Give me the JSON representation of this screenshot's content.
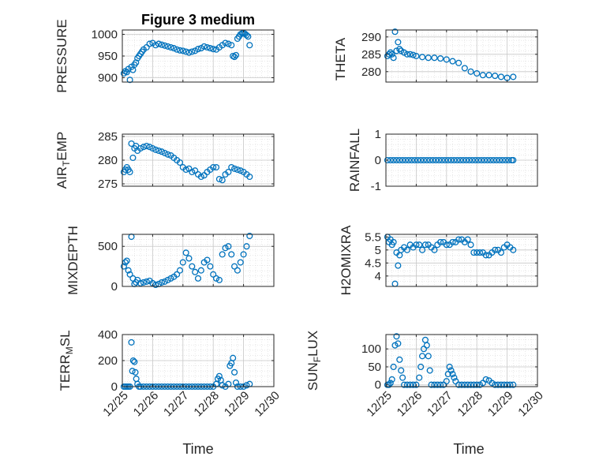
{
  "figure": {
    "xlabel": "Time"
  },
  "chart_data": [
    {
      "type": "scatter",
      "title": "Figure 3 medium",
      "ylabel": "PRESSURE",
      "ylim": [
        890,
        1010
      ],
      "yticks": [
        900,
        950,
        1000
      ],
      "ytick_labels": [
        "900",
        "950",
        "1000"
      ],
      "xlim": [
        0,
        5
      ],
      "xticks": [
        0,
        1,
        2,
        3,
        4,
        5
      ],
      "show_xtick_labels": false,
      "x": [
        0.05,
        0.1,
        0.15,
        0.2,
        0.25,
        0.3,
        0.35,
        0.4,
        0.45,
        0.5,
        0.55,
        0.6,
        0.65,
        0.7,
        0.8,
        0.9,
        1.0,
        1.1,
        1.2,
        1.3,
        1.4,
        1.5,
        1.6,
        1.7,
        1.8,
        1.9,
        2.0,
        2.1,
        2.2,
        2.3,
        2.4,
        2.5,
        2.6,
        2.7,
        2.8,
        2.9,
        3.0,
        3.1,
        3.2,
        3.3,
        3.4,
        3.5,
        3.6,
        3.65,
        3.7,
        3.75,
        3.8,
        3.85,
        3.9,
        3.95,
        4.0,
        4.05,
        4.1,
        4.15,
        4.2
      ],
      "y": [
        910,
        915,
        913,
        920,
        895,
        925,
        918,
        930,
        935,
        945,
        950,
        955,
        960,
        965,
        970,
        978,
        980,
        975,
        978,
        976,
        974,
        972,
        970,
        968,
        965,
        963,
        962,
        960,
        958,
        960,
        962,
        966,
        968,
        972,
        970,
        968,
        966,
        965,
        970,
        975,
        980,
        978,
        975,
        950,
        948,
        952,
        990,
        995,
        1000,
        1002,
        1003,
        1001,
        998,
        995,
        975
      ]
    },
    {
      "type": "scatter",
      "ylabel": "THETA",
      "ylim": [
        277,
        292
      ],
      "yticks": [
        280,
        285,
        290
      ],
      "ytick_labels": [
        "280",
        "285",
        "290"
      ],
      "xlim": [
        0,
        5
      ],
      "xticks": [
        0,
        1,
        2,
        3,
        4,
        5
      ],
      "show_xtick_labels": false,
      "x": [
        0.05,
        0.1,
        0.15,
        0.2,
        0.25,
        0.3,
        0.35,
        0.4,
        0.45,
        0.5,
        0.6,
        0.7,
        0.8,
        0.9,
        1.0,
        1.2,
        1.4,
        1.6,
        1.8,
        2.0,
        2.2,
        2.4,
        2.6,
        2.8,
        3.0,
        3.2,
        3.4,
        3.6,
        3.8,
        4.0,
        4.2
      ],
      "y": [
        284.5,
        285,
        285.5,
        285,
        284,
        291.5,
        286,
        288.5,
        286.5,
        286,
        285.5,
        285,
        285,
        284.8,
        284.5,
        284.2,
        284,
        284,
        283.8,
        283.5,
        283,
        282.5,
        281,
        280,
        279.5,
        279,
        279,
        278.8,
        278.5,
        278.2,
        278.5
      ]
    },
    {
      "type": "scatter",
      "ylabel": "AIR_TEMP",
      "ylim": [
        274.5,
        285.5
      ],
      "yticks": [
        275,
        280,
        285
      ],
      "ytick_labels": [
        "275",
        "280",
        "285"
      ],
      "xlim": [
        0,
        5
      ],
      "xticks": [
        0,
        1,
        2,
        3,
        4,
        5
      ],
      "show_xtick_labels": false,
      "x": [
        0.05,
        0.1,
        0.15,
        0.2,
        0.25,
        0.3,
        0.35,
        0.4,
        0.45,
        0.5,
        0.6,
        0.7,
        0.8,
        0.9,
        1.0,
        1.1,
        1.2,
        1.3,
        1.4,
        1.5,
        1.6,
        1.7,
        1.8,
        1.9,
        2.0,
        2.1,
        2.2,
        2.3,
        2.4,
        2.5,
        2.6,
        2.7,
        2.8,
        2.9,
        3.0,
        3.1,
        3.2,
        3.3,
        3.4,
        3.5,
        3.6,
        3.7,
        3.8,
        3.9,
        4.0,
        4.1,
        4.2
      ],
      "y": [
        277.5,
        278,
        278.5,
        278,
        277.5,
        283.5,
        280.5,
        282.5,
        283,
        282,
        282.5,
        282.8,
        283,
        282.8,
        282.5,
        282.2,
        282,
        281.8,
        281.5,
        281.2,
        281,
        280.5,
        280,
        279.5,
        278.5,
        278,
        278.2,
        277.5,
        277.8,
        277,
        276.5,
        276.8,
        277.5,
        278,
        278.5,
        278.5,
        276,
        275.8,
        277,
        277.5,
        278.5,
        278.2,
        278,
        277.8,
        277.5,
        277,
        276.5
      ]
    },
    {
      "type": "scatter",
      "ylabel": "RAINFALL",
      "ylim": [
        -1,
        1
      ],
      "yticks": [
        -1,
        0,
        1
      ],
      "ytick_labels": [
        "-1",
        "0",
        "1"
      ],
      "xlim": [
        0,
        5
      ],
      "xticks": [
        0,
        1,
        2,
        3,
        4,
        5
      ],
      "show_xtick_labels": false,
      "x": [
        0.05,
        0.15,
        0.25,
        0.35,
        0.45,
        0.55,
        0.65,
        0.75,
        0.85,
        0.95,
        1.05,
        1.15,
        1.25,
        1.35,
        1.45,
        1.55,
        1.65,
        1.75,
        1.85,
        1.95,
        2.05,
        2.15,
        2.25,
        2.35,
        2.45,
        2.55,
        2.65,
        2.75,
        2.85,
        2.95,
        3.05,
        3.15,
        3.25,
        3.35,
        3.45,
        3.55,
        3.65,
        3.75,
        3.85,
        3.95,
        4.05,
        4.15,
        4.2
      ],
      "y": [
        0,
        0,
        0,
        0,
        0,
        0,
        0,
        0,
        0,
        0,
        0,
        0,
        0,
        0,
        0,
        0,
        0,
        0,
        0,
        0,
        0,
        0,
        0,
        0,
        0,
        0,
        0,
        0,
        0,
        0,
        0,
        0,
        0,
        0,
        0,
        0,
        0,
        0,
        0,
        0,
        0,
        0,
        0
      ]
    },
    {
      "type": "scatter",
      "ylabel": "MIXDEPTH",
      "ylim": [
        0,
        650
      ],
      "yticks": [
        0,
        500
      ],
      "ytick_labels": [
        "0",
        "500"
      ],
      "xlim": [
        0,
        5
      ],
      "xticks": [
        0,
        1,
        2,
        3,
        4,
        5
      ],
      "show_xtick_labels": false,
      "x": [
        0.05,
        0.1,
        0.15,
        0.2,
        0.25,
        0.3,
        0.35,
        0.4,
        0.45,
        0.5,
        0.6,
        0.7,
        0.8,
        0.9,
        1.0,
        1.1,
        1.2,
        1.3,
        1.4,
        1.5,
        1.6,
        1.7,
        1.8,
        1.9,
        2.0,
        2.1,
        2.2,
        2.3,
        2.4,
        2.5,
        2.6,
        2.7,
        2.8,
        2.9,
        3.0,
        3.1,
        3.2,
        3.3,
        3.4,
        3.5,
        3.6,
        3.7,
        3.8,
        3.9,
        4.0,
        4.1,
        4.2
      ],
      "y": [
        250,
        300,
        320,
        200,
        150,
        620,
        100,
        30,
        50,
        80,
        40,
        50,
        60,
        70,
        40,
        20,
        30,
        50,
        60,
        80,
        100,
        120,
        150,
        200,
        300,
        420,
        350,
        250,
        180,
        100,
        200,
        300,
        330,
        250,
        150,
        100,
        80,
        400,
        480,
        500,
        400,
        250,
        200,
        300,
        400,
        500,
        630
      ]
    },
    {
      "type": "scatter",
      "ylabel": "H2OMIXRA",
      "ylim": [
        3.6,
        5.6
      ],
      "yticks": [
        4,
        4.5,
        5,
        5.5
      ],
      "ytick_labels": [
        "4",
        "4.5",
        "5",
        "5.5"
      ],
      "xlim": [
        0,
        5
      ],
      "xticks": [
        0,
        1,
        2,
        3,
        4,
        5
      ],
      "show_xtick_labels": false,
      "x": [
        0.05,
        0.1,
        0.15,
        0.2,
        0.25,
        0.3,
        0.35,
        0.4,
        0.45,
        0.5,
        0.6,
        0.7,
        0.8,
        0.9,
        1.0,
        1.1,
        1.2,
        1.3,
        1.4,
        1.5,
        1.6,
        1.7,
        1.8,
        1.9,
        2.0,
        2.1,
        2.2,
        2.3,
        2.4,
        2.5,
        2.6,
        2.7,
        2.8,
        2.9,
        3.0,
        3.1,
        3.2,
        3.3,
        3.4,
        3.5,
        3.6,
        3.7,
        3.8,
        3.9,
        4.0,
        4.1,
        4.2
      ],
      "y": [
        5.5,
        5.3,
        5.4,
        5.2,
        5.3,
        3.7,
        4.9,
        4.4,
        4.8,
        5.0,
        5.1,
        5.0,
        5.2,
        5.1,
        5.2,
        5.2,
        5.0,
        5.2,
        5.2,
        5.1,
        5.0,
        5.2,
        5.3,
        5.3,
        5.2,
        5.2,
        5.3,
        5.3,
        5.4,
        5.4,
        5.3,
        5.4,
        5.2,
        4.9,
        4.9,
        4.9,
        4.9,
        4.8,
        4.8,
        4.9,
        5.0,
        5.0,
        4.9,
        5.1,
        5.2,
        5.1,
        5.0
      ]
    },
    {
      "type": "scatter",
      "ylabel": "TERR_MSL",
      "ylim": [
        0,
        400
      ],
      "yticks": [
        0,
        200,
        400
      ],
      "ytick_labels": [
        "0",
        "200",
        "400"
      ],
      "xlim": [
        0,
        5
      ],
      "xticks": [
        0,
        1,
        2,
        3,
        4,
        5
      ],
      "xtick_labels": [
        "12/25",
        "12/26",
        "12/27",
        "12/28",
        "12/29",
        "12/30"
      ],
      "x": [
        0.05,
        0.1,
        0.15,
        0.2,
        0.25,
        0.3,
        0.33,
        0.36,
        0.4,
        0.43,
        0.46,
        0.5,
        0.55,
        0.6,
        0.7,
        0.8,
        0.9,
        1.0,
        1.1,
        1.2,
        1.3,
        1.4,
        1.5,
        1.6,
        1.7,
        1.8,
        1.9,
        2.0,
        2.1,
        2.2,
        2.3,
        2.4,
        2.5,
        2.6,
        2.7,
        2.8,
        2.9,
        3.0,
        3.1,
        3.15,
        3.2,
        3.25,
        3.3,
        3.4,
        3.5,
        3.55,
        3.6,
        3.65,
        3.7,
        3.75,
        3.8,
        3.9,
        4.0,
        4.1,
        4.2
      ],
      "y": [
        0,
        0,
        0,
        0,
        0,
        340,
        120,
        200,
        190,
        110,
        60,
        20,
        0,
        0,
        0,
        0,
        0,
        0,
        0,
        0,
        0,
        0,
        0,
        0,
        0,
        0,
        0,
        0,
        0,
        0,
        0,
        0,
        0,
        0,
        0,
        0,
        0,
        0,
        20,
        60,
        80,
        50,
        10,
        0,
        20,
        160,
        180,
        220,
        110,
        30,
        0,
        0,
        0,
        10,
        20
      ]
    },
    {
      "type": "scatter",
      "ylabel": "SUN_FLUX",
      "ylim": [
        -5,
        140
      ],
      "yticks": [
        0,
        50,
        100
      ],
      "ytick_labels": [
        "0",
        "50",
        "100"
      ],
      "xlim": [
        0,
        5
      ],
      "xticks": [
        0,
        1,
        2,
        3,
        4,
        5
      ],
      "xtick_labels": [
        "12/25",
        "12/26",
        "12/27",
        "12/28",
        "12/29",
        "12/30"
      ],
      "x": [
        0.05,
        0.1,
        0.15,
        0.2,
        0.25,
        0.3,
        0.35,
        0.4,
        0.45,
        0.5,
        0.55,
        0.6,
        0.7,
        0.8,
        0.9,
        1.0,
        1.1,
        1.15,
        1.2,
        1.25,
        1.3,
        1.35,
        1.4,
        1.45,
        1.5,
        1.6,
        1.7,
        1.8,
        1.9,
        2.0,
        2.05,
        2.1,
        2.15,
        2.2,
        2.25,
        2.3,
        2.4,
        2.5,
        2.6,
        2.7,
        2.8,
        2.9,
        3.0,
        3.1,
        3.2,
        3.3,
        3.4,
        3.5,
        3.6,
        3.7,
        3.8,
        3.9,
        4.0,
        4.1,
        4.2
      ],
      "y": [
        0,
        0,
        5,
        15,
        50,
        110,
        135,
        115,
        70,
        40,
        20,
        0,
        0,
        0,
        0,
        0,
        20,
        50,
        80,
        100,
        125,
        110,
        80,
        40,
        0,
        0,
        0,
        0,
        0,
        10,
        30,
        50,
        40,
        30,
        20,
        10,
        0,
        0,
        0,
        0,
        0,
        0,
        0,
        0,
        5,
        15,
        12,
        5,
        0,
        0,
        0,
        0,
        0,
        0,
        0
      ]
    }
  ]
}
